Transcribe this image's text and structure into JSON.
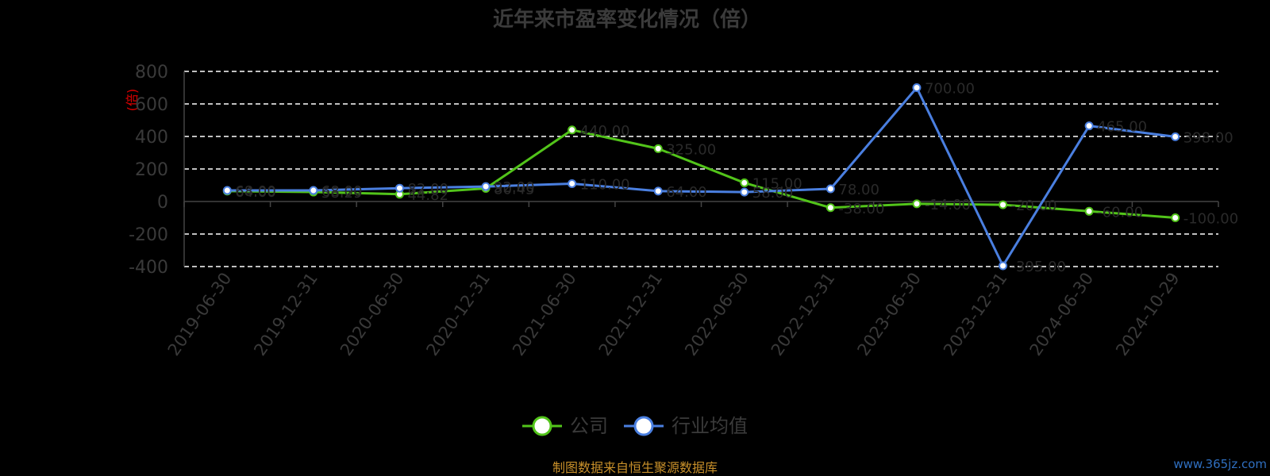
{
  "chart_data": {
    "type": "line",
    "title": "近年来市盈率变化情况（倍）",
    "ylabel": "(倍)",
    "xlabel": "",
    "ylim": [
      -400,
      800
    ],
    "yticks": [
      "800",
      "600",
      "400",
      "200",
      "0",
      "-200",
      "-400"
    ],
    "grid": true,
    "categories": [
      "2019-06-30",
      "2019-12-31",
      "2020-06-30",
      "2020-12-31",
      "2021-06-30",
      "2021-12-31",
      "2022-06-30",
      "2022-12-31",
      "2023-06-30",
      "2023-12-31",
      "2024-06-30",
      "2024-10-29"
    ],
    "series": [
      {
        "name": "公司",
        "color": "#52c41a",
        "values": [
          64.0,
          58.29,
          44.82,
          80.45,
          440.0,
          325.0,
          115.0,
          -38.0,
          -14.0,
          -20.0,
          -60.0,
          -100.0
        ]
      },
      {
        "name": "行业均值",
        "color": "#4a7fe0",
        "values": [
          68.0,
          68.0,
          82.0,
          92.0,
          110.0,
          64.0,
          58.0,
          78.0,
          700.0,
          -395.0,
          465.0,
          398.0
        ]
      }
    ],
    "legend_position": "bottom-center"
  },
  "footer": {
    "source": "制图数据来自恒生聚源数据库",
    "watermark": "www.365jz.com"
  }
}
